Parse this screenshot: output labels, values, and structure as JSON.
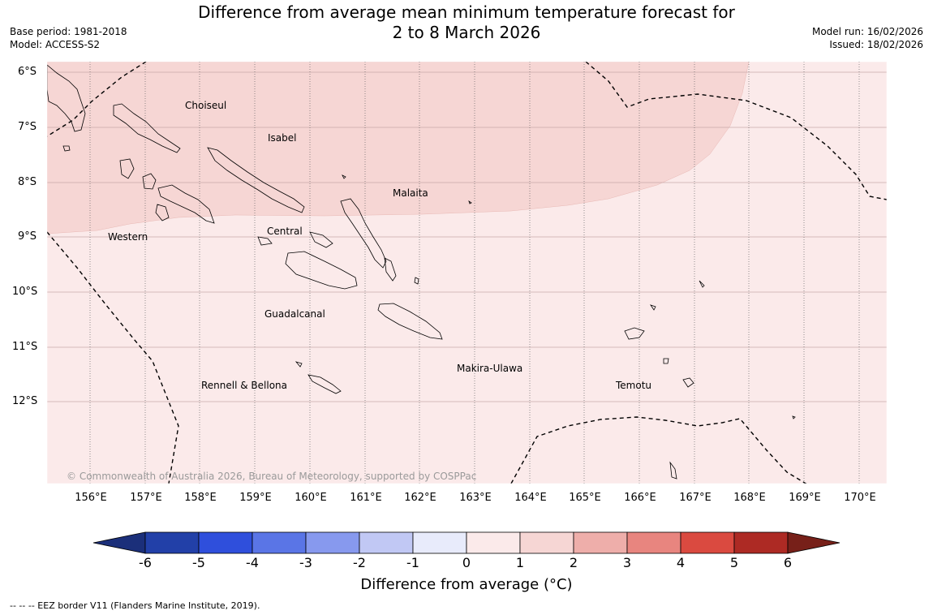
{
  "title": {
    "line1": "Difference from average mean minimum temperature forecast for",
    "line2": "2 to 8 March 2026"
  },
  "meta_left": {
    "base_period": "Base period: 1981-2018",
    "model": "Model: ACCESS-S2"
  },
  "meta_right": {
    "model_run": "Model run: 16/02/2026",
    "issued": "Issued: 18/02/2026"
  },
  "map": {
    "lat_labels": [
      "6°S",
      "7°S",
      "8°S",
      "9°S",
      "10°S",
      "11°S",
      "12°S"
    ],
    "lon_labels": [
      "156°E",
      "157°E",
      "158°E",
      "159°E",
      "160°E",
      "161°E",
      "162°E",
      "163°E",
      "164°E",
      "165°E",
      "166°E",
      "167°E",
      "168°E",
      "169°E",
      "170°E"
    ],
    "regions": [
      "Choiseul",
      "Isabel",
      "Malaita",
      "Western",
      "Central",
      "Guadalcanal",
      "Makira-Ulawa",
      "Rennell & Bellona",
      "Temotu"
    ],
    "copyright": "© Commonwealth of Australia 2026, Bureau of Meteorology, supported by COSPPac",
    "fill_colors": {
      "band_1_2": "#f6d6d4",
      "band_0_1": "#fbeaea"
    }
  },
  "colorbar": {
    "ticks": [
      "-6",
      "-5",
      "-4",
      "-3",
      "-2",
      "-1",
      "0",
      "1",
      "2",
      "3",
      "4",
      "5",
      "6"
    ],
    "colors": [
      "#2240a8",
      "#2f4fdc",
      "#5a75e6",
      "#8799ee",
      "#c1c8f4",
      "#e8ebfb",
      "#fbeaea",
      "#f6d6d4",
      "#eeaeaa",
      "#e8857f",
      "#da4a40",
      "#ad2a24"
    ],
    "low_extend_color": "#1b2f7a",
    "high_extend_color": "#772019",
    "title": "Difference from average (°C)"
  },
  "footer": "--  --  -- EEZ border V11 (Flanders Marine Institute, 2019)."
}
